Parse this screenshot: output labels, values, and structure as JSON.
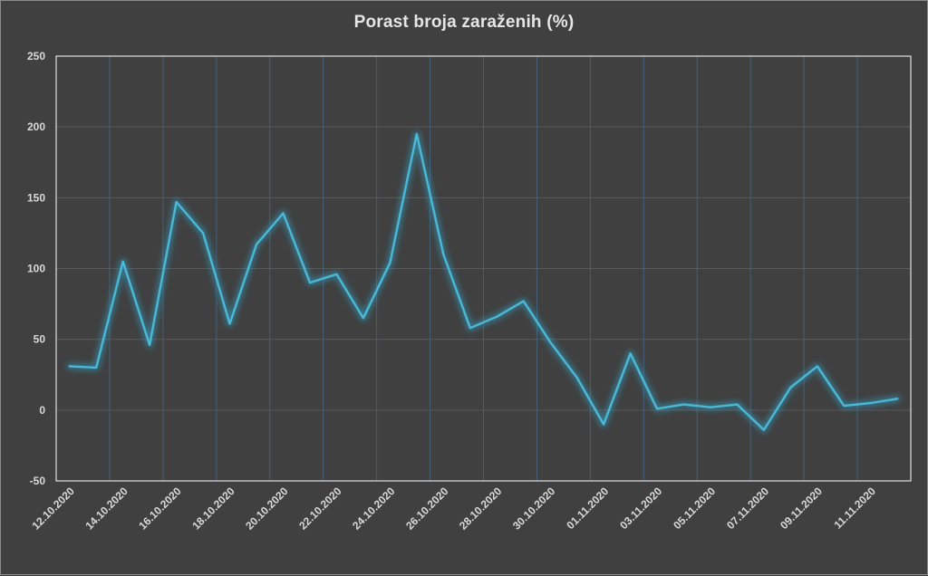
{
  "chart_data": {
    "type": "line",
    "title": "Porast broja zaraženih (%)",
    "xlabel": "",
    "ylabel": "",
    "ylim": [
      -50,
      250
    ],
    "yticks": [
      250,
      200,
      150,
      100,
      50,
      0,
      -50
    ],
    "x_tick_labels": [
      "12.10.2020",
      "14.10.2020",
      "16.10.2020",
      "18.10.2020",
      "20.10.2020",
      "22.10.2020",
      "24.10.2020",
      "26.10.2020",
      "28.10.2020",
      "30.10.2020",
      "01.11.2020",
      "03.11.2020",
      "05.11.2020",
      "07.11.2020",
      "09.11.2020",
      "11.11.2020"
    ],
    "x": [
      "12.10.2020",
      "13.10.2020",
      "14.10.2020",
      "15.10.2020",
      "16.10.2020",
      "17.10.2020",
      "18.10.2020",
      "19.10.2020",
      "20.10.2020",
      "21.10.2020",
      "22.10.2020",
      "23.10.2020",
      "24.10.2020",
      "25.10.2020",
      "26.10.2020",
      "27.10.2020",
      "28.10.2020",
      "29.10.2020",
      "30.10.2020",
      "31.10.2020",
      "01.11.2020",
      "02.11.2020",
      "03.11.2020",
      "04.11.2020",
      "05.11.2020",
      "06.11.2020",
      "07.11.2020",
      "08.11.2020",
      "09.11.2020",
      "10.11.2020",
      "11.11.2020",
      "12.11.2020"
    ],
    "series": [
      {
        "values": [
          31,
          30,
          105,
          46,
          147,
          125,
          61,
          117,
          139,
          90,
          96,
          65,
          104,
          195,
          110,
          58,
          66,
          77,
          48,
          23,
          -10,
          40,
          1,
          4,
          2,
          4,
          -14,
          16,
          31,
          3,
          5,
          8
        ]
      }
    ],
    "grid": true,
    "legend": "none",
    "colors": {
      "background": "#404040",
      "line": "#4bb8d6",
      "glow": "#2fa3c8",
      "grid": "#595959",
      "vgrid": "#44607a",
      "plot_border": "#ffffff",
      "text": "#d9d9d9"
    }
  }
}
